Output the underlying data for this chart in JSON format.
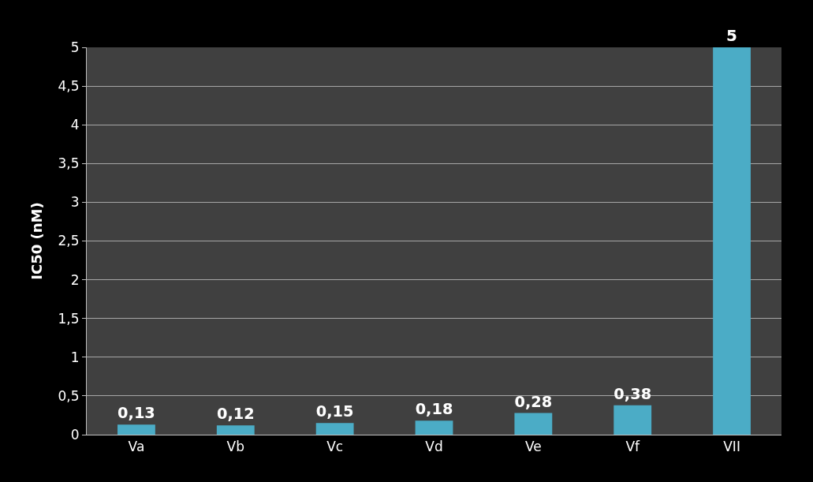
{
  "chart_data": {
    "type": "bar",
    "ylabel": "IC50 (nM)",
    "categories": [
      "Va",
      "Vb",
      "Vc",
      "Vd",
      "Ve",
      "Vf",
      "VII"
    ],
    "values": [
      0.13,
      0.12,
      0.15,
      0.18,
      0.28,
      0.38,
      5
    ],
    "value_labels": [
      "0,13",
      "0,12",
      "0,15",
      "0,18",
      "0,28",
      "0,38",
      "5"
    ],
    "color": "#4bacc6",
    "ylim": [
      0,
      5
    ],
    "yticks": [
      0,
      {
        "value": 0.5,
        "label": "0,5"
      },
      1,
      {
        "value": 1.5,
        "label": "1,5"
      },
      2,
      {
        "value": 2.5,
        "label": "2,5"
      },
      3,
      {
        "value": 3.5,
        "label": "3,5"
      },
      4,
      {
        "value": 4.5,
        "label": "4,5"
      },
      5
    ],
    "grid": "y"
  }
}
